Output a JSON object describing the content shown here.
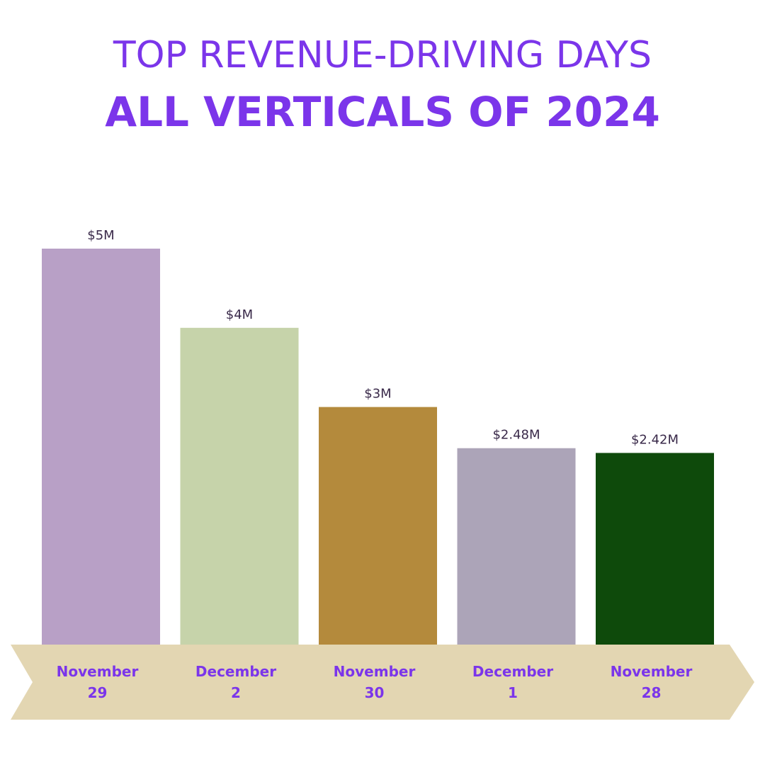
{
  "header": {
    "title_line1": "TOP REVENUE-DRIVING DAYS",
    "title_line2": "ALL VERTICALS OF 2024"
  },
  "chart_data": {
    "type": "bar",
    "title": "TOP REVENUE-DRIVING DAYS ALL VERTICALS OF 2024",
    "categories": [
      [
        "November",
        "29"
      ],
      [
        "December",
        "2"
      ],
      [
        "November",
        "30"
      ],
      [
        "December",
        "1"
      ],
      [
        "November",
        "28"
      ]
    ],
    "values": [
      5,
      4,
      3,
      2.48,
      2.42
    ],
    "value_labels": [
      "$5M",
      "$4M",
      "$3M",
      "$2.48M",
      "$2.42M"
    ],
    "colors": [
      "#b8a0c6",
      "#c6d3aa",
      "#b48a3c",
      "#aca4b8",
      "#0e4a0b"
    ],
    "axis_band_color": "#e3d6b2",
    "ylim": [
      0,
      5
    ],
    "grid": false,
    "legend": "none"
  }
}
